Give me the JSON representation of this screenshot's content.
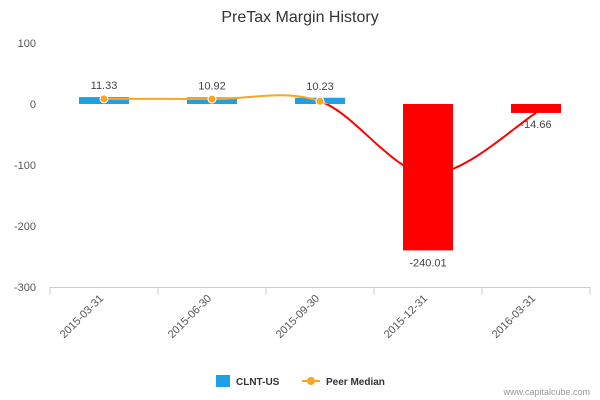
{
  "chart_data": {
    "type": "bar",
    "title": "PreTax Margin History",
    "xlabel": "",
    "ylabel": "",
    "categories": [
      "2015-03-31",
      "2015-06-30",
      "2015-09-30",
      "2015-12-31",
      "2016-03-31"
    ],
    "series": [
      {
        "name": "CLNT-US",
        "type": "bar",
        "values": [
          11.33,
          10.92,
          10.23,
          -240.01,
          -14.66
        ],
        "labels": [
          "11.33",
          "10.92",
          "10.23",
          "-240.01",
          "-14.66"
        ]
      },
      {
        "name": "Peer Median",
        "type": "line",
        "values": [
          8.5,
          8.0,
          4.5,
          -115,
          -14.66
        ]
      }
    ],
    "ylim": [
      -300,
      100
    ],
    "yticks": [
      100,
      0,
      -100,
      -200,
      -300
    ],
    "ytick_labels": [
      "100",
      "0",
      "-100",
      "-200",
      "-300"
    ],
    "grid": false,
    "legend": "bottom-center"
  },
  "colors": {
    "positive_bar": "#1e9fe6",
    "negative_bar": "#ff0000",
    "peer_marker": "#f5a623",
    "peer_line_positive": "#f5a623",
    "peer_line_negative": "#ff0000"
  },
  "credit": "www.capitalcube.com"
}
